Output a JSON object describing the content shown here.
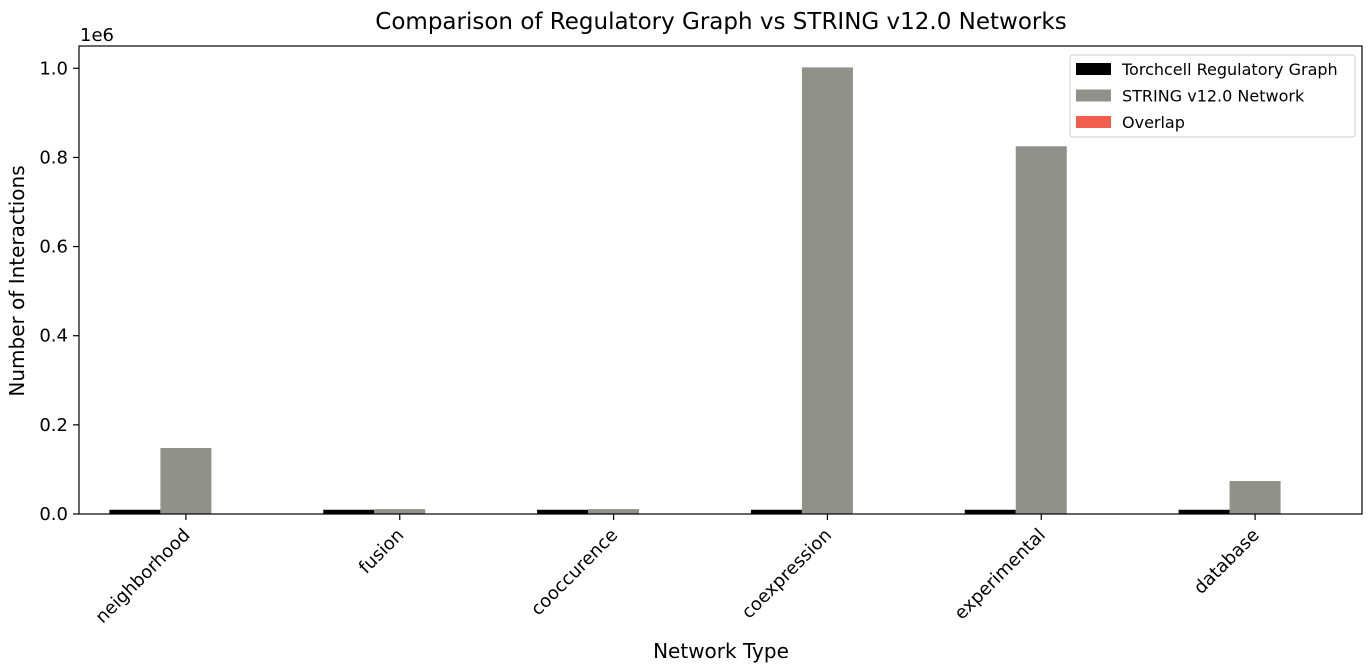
{
  "chart_data": {
    "type": "bar",
    "title": "Comparison of Regulatory Graph vs STRING v12.0 Networks",
    "xlabel": "Network Type",
    "ylabel": "Number of Interactions",
    "y_offset_label": "1e6",
    "y_scale": 1000000,
    "ylim": [
      0,
      1050000
    ],
    "yticks": [
      0,
      200000,
      400000,
      600000,
      800000,
      1000000
    ],
    "ytick_labels": [
      "0.0",
      "0.2",
      "0.4",
      "0.6",
      "0.8",
      "1.0"
    ],
    "categories": [
      "neighborhood",
      "fusion",
      "cooccurence",
      "coexpression",
      "experimental",
      "database"
    ],
    "series": [
      {
        "name": "Torchcell Regulatory Graph",
        "color": "#000000",
        "values": [
          9500,
          9500,
          9500,
          9500,
          9500,
          9500
        ]
      },
      {
        "name": "STRING v12.0 Network",
        "color": "#8f918a",
        "values": [
          148000,
          11000,
          11000,
          1002000,
          825000,
          74000
        ]
      },
      {
        "name": "Overlap",
        "color": "#f15e4e",
        "values": [
          100,
          0,
          0,
          400,
          1200,
          300
        ]
      }
    ],
    "legend_position": "top-right",
    "grid": false
  }
}
